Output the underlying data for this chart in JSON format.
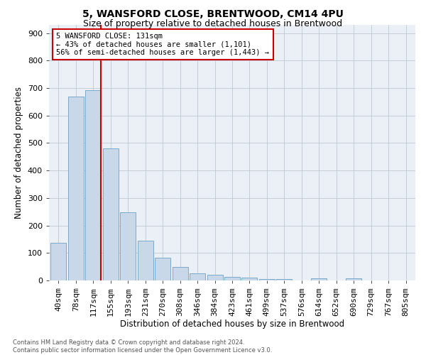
{
  "title": "5, WANSFORD CLOSE, BRENTWOOD, CM14 4PU",
  "subtitle": "Size of property relative to detached houses in Brentwood",
  "xlabel": "Distribution of detached houses by size in Brentwood",
  "ylabel": "Number of detached properties",
  "footer_line1": "Contains HM Land Registry data © Crown copyright and database right 2024.",
  "footer_line2": "Contains public sector information licensed under the Open Government Licence v3.0.",
  "bar_labels": [
    "40sqm",
    "78sqm",
    "117sqm",
    "155sqm",
    "193sqm",
    "231sqm",
    "270sqm",
    "308sqm",
    "346sqm",
    "384sqm",
    "423sqm",
    "461sqm",
    "499sqm",
    "537sqm",
    "576sqm",
    "614sqm",
    "652sqm",
    "690sqm",
    "729sqm",
    "767sqm",
    "805sqm"
  ],
  "bar_values": [
    138,
    670,
    693,
    480,
    248,
    145,
    82,
    50,
    26,
    21,
    14,
    11,
    6,
    5,
    0,
    8,
    0,
    8,
    0,
    0,
    0
  ],
  "bar_color": "#c8d8e8",
  "bar_edge_color": "#7aaaca",
  "grid_color": "#c0c8d0",
  "background_color": "#eaf0f6",
  "vline_color": "#cc0000",
  "vline_x_index": 2,
  "annotation_line1": "5 WANSFORD CLOSE: 131sqm",
  "annotation_line2": "← 43% of detached houses are smaller (1,101)",
  "annotation_line3": "56% of semi-detached houses are larger (1,443) →",
  "annotation_box_color": "#cc0000",
  "ylim": [
    0,
    930
  ],
  "yticks": [
    0,
    100,
    200,
    300,
    400,
    500,
    600,
    700,
    800,
    900
  ],
  "title_fontsize": 10,
  "subtitle_fontsize": 9,
  "ylabel_fontsize": 8.5,
  "xlabel_fontsize": 8.5,
  "tick_fontsize": 8,
  "annotation_fontsize": 7.5,
  "footer_fontsize": 6
}
